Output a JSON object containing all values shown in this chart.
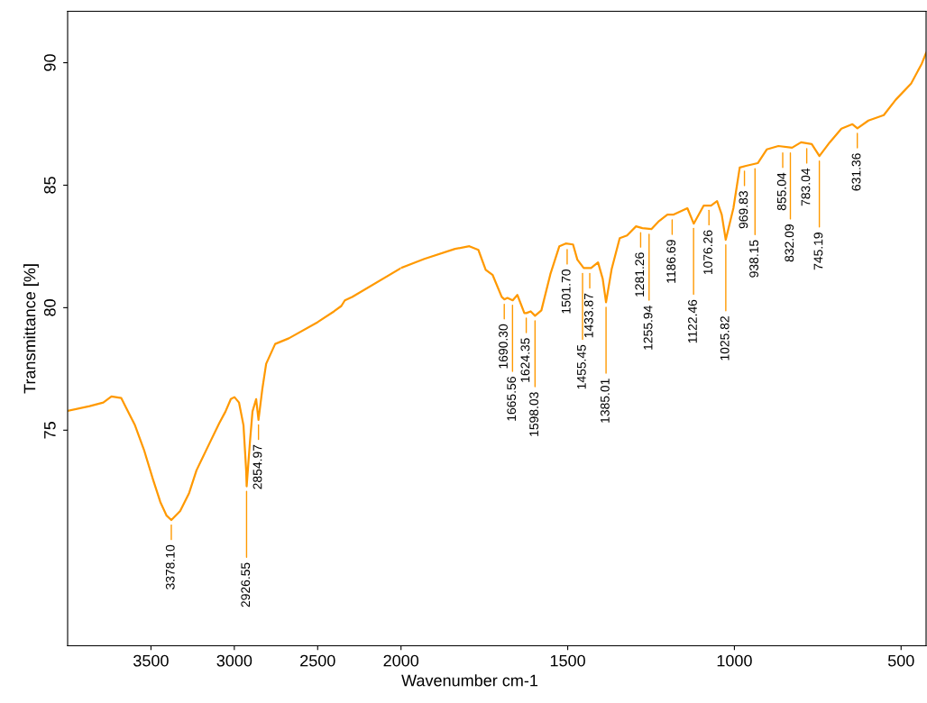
{
  "chart_data": [
    {
      "type": "line",
      "ylabel": "Transmittance [%]",
      "xlim": [
        4000,
        2000
      ],
      "xticks": [
        3500,
        3000,
        2500
      ],
      "ylim": [
        66.2,
        92.1
      ],
      "yticks": [
        75,
        80,
        85,
        90
      ],
      "grid": false,
      "legend": false,
      "marker": "none",
      "line_style": "solid",
      "series": [
        {
          "color": "#ff9900",
          "x": [
            4000,
            3868,
            3786,
            3737,
            3678,
            3651,
            3596,
            3542,
            3488,
            3444,
            3406,
            3378,
            3325,
            3271,
            3227,
            3162,
            3091,
            3053,
            3021,
            2999,
            2972,
            2945,
            2929,
            2926,
            2907,
            2891,
            2869,
            2855,
            2832,
            2809,
            2755,
            2673,
            2500,
            2402,
            2358,
            2337,
            2293,
            2000
          ],
          "values": [
            75.79,
            75.98,
            76.13,
            76.38,
            76.31,
            75.94,
            75.2,
            74.2,
            72.99,
            72.07,
            71.51,
            71.33,
            71.7,
            72.44,
            73.36,
            74.28,
            75.28,
            75.76,
            76.27,
            76.35,
            76.13,
            75.2,
            73.36,
            72.71,
            74.46,
            75.76,
            76.27,
            75.42,
            76.68,
            77.71,
            78.52,
            78.75,
            79.41,
            79.85,
            80.07,
            80.3,
            80.44,
            81.62
          ]
        }
      ],
      "annotations": [
        {
          "text": "3378.10",
          "x": 3378.1,
          "y": 71.33
        },
        {
          "text": "2926.55",
          "x": 2926.55,
          "y": 72.71
        },
        {
          "text": "2854.97",
          "x": 2854.97,
          "y": 75.42
        }
      ]
    },
    {
      "type": "line",
      "xlabel": "Wavenumber cm-1",
      "xlim": [
        2000,
        425
      ],
      "xticks": [
        2000,
        1500,
        1000,
        500
      ],
      "ylim": [
        66.2,
        92.1
      ],
      "tick_labels": "x",
      "grid": false,
      "legend": false,
      "marker": "none",
      "line_style": "solid",
      "series": [
        {
          "color": "#ff9900",
          "x": [
            2000,
            1930,
            1838,
            1795,
            1768,
            1746,
            1725,
            1698,
            1690,
            1681,
            1665,
            1651,
            1630,
            1624,
            1611,
            1598,
            1579,
            1552,
            1525,
            1506,
            1484,
            1471,
            1452,
            1430,
            1409,
            1395,
            1385,
            1368,
            1344,
            1322,
            1295,
            1276,
            1249,
            1228,
            1201,
            1182,
            1141,
            1122,
            1092,
            1070,
            1052,
            1038,
            1026,
            1003,
            984,
            965,
            930,
            903,
            868,
            827,
            800,
            768,
            745,
            714,
            679,
            646,
            631,
            598,
            552,
            516,
            470,
            438,
            425
          ],
          "values": [
            81.62,
            81.99,
            82.4,
            82.51,
            82.36,
            81.55,
            81.33,
            80.44,
            80.34,
            80.4,
            80.3,
            80.52,
            79.78,
            79.78,
            79.85,
            79.67,
            79.89,
            81.37,
            82.51,
            82.62,
            82.58,
            81.96,
            81.62,
            81.62,
            81.85,
            81.18,
            80.22,
            81.59,
            82.84,
            82.95,
            83.32,
            83.25,
            83.21,
            83.51,
            83.8,
            83.8,
            84.06,
            83.43,
            84.17,
            84.17,
            84.35,
            83.8,
            82.77,
            84.06,
            85.72,
            85.79,
            85.9,
            86.46,
            86.6,
            86.53,
            86.75,
            86.68,
            86.19,
            86.75,
            87.31,
            87.49,
            87.32,
            87.64,
            87.86,
            88.49,
            89.15,
            89.96,
            90.4
          ]
        }
      ],
      "annotations": [
        {
          "text": "1690.30",
          "x": 1690.3,
          "y": 80.34
        },
        {
          "text": "1665.56",
          "x": 1665.56,
          "y": 80.3
        },
        {
          "text": "1624.35",
          "x": 1624.35,
          "y": 79.78
        },
        {
          "text": "1598.03",
          "x": 1598.03,
          "y": 79.67
        },
        {
          "text": "1501.70",
          "x": 1501.7,
          "y": 82.58
        },
        {
          "text": "1455.45",
          "x": 1455.45,
          "y": 81.6
        },
        {
          "text": "1433.87",
          "x": 1433.87,
          "y": 81.6
        },
        {
          "text": "1385.01",
          "x": 1385.01,
          "y": 80.22
        },
        {
          "text": "1281.26",
          "x": 1281.26,
          "y": 83.27
        },
        {
          "text": "1255.94",
          "x": 1255.94,
          "y": 83.2
        },
        {
          "text": "1186.69",
          "x": 1186.69,
          "y": 83.79
        },
        {
          "text": "1122.46",
          "x": 1122.46,
          "y": 83.44
        },
        {
          "text": "1076.26",
          "x": 1076.26,
          "y": 84.18
        },
        {
          "text": "1025.82",
          "x": 1025.82,
          "y": 82.77
        },
        {
          "text": "969.83",
          "x": 969.83,
          "y": 85.78
        },
        {
          "text": "938.15",
          "x": 938.15,
          "y": 85.88
        },
        {
          "text": "855.04",
          "x": 855.04,
          "y": 86.52
        },
        {
          "text": "832.09",
          "x": 832.09,
          "y": 86.52
        },
        {
          "text": "783.04",
          "x": 783.04,
          "y": 86.7
        },
        {
          "text": "745.19",
          "x": 745.19,
          "y": 86.19
        },
        {
          "text": "631.36",
          "x": 631.36,
          "y": 87.32
        }
      ]
    }
  ]
}
